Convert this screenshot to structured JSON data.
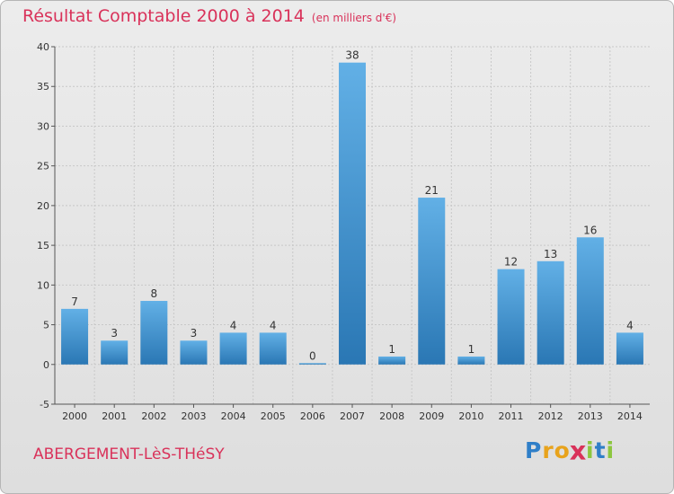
{
  "title": "Résultat Comptable 2000 à 2014",
  "subtitle": "(en milliers d'€)",
  "commune": "ABERGEMENT-LèS-THéSY",
  "logo": {
    "letters": [
      "P",
      "r",
      "o",
      "x",
      "i",
      "t",
      "i"
    ],
    "colors": [
      "#2f7fc8",
      "#e8a31c",
      "#e8a31c",
      "#d9325a",
      "#8cc63f",
      "#2f7fc8",
      "#8cc63f"
    ]
  },
  "colors": {
    "title": "#d9325a",
    "bar_light": "#62b0e6",
    "bar_dark": "#2a77b4",
    "grid": "#c8c8c8"
  },
  "chart_data": {
    "type": "bar",
    "title": "Résultat Comptable 2000 à 2014",
    "unit": "en milliers d'€",
    "categories": [
      "2000",
      "2001",
      "2002",
      "2003",
      "2004",
      "2005",
      "2006",
      "2007",
      "2008",
      "2009",
      "2010",
      "2011",
      "2012",
      "2013",
      "2014"
    ],
    "values": [
      7,
      3,
      8,
      3,
      4,
      4,
      0,
      38,
      1,
      21,
      1,
      12,
      13,
      16,
      4
    ],
    "ylim": [
      -5,
      40
    ],
    "yticks": [
      -5,
      0,
      5,
      10,
      15,
      20,
      25,
      30,
      35,
      40
    ],
    "grid": true,
    "xlabel": "",
    "ylabel": ""
  }
}
